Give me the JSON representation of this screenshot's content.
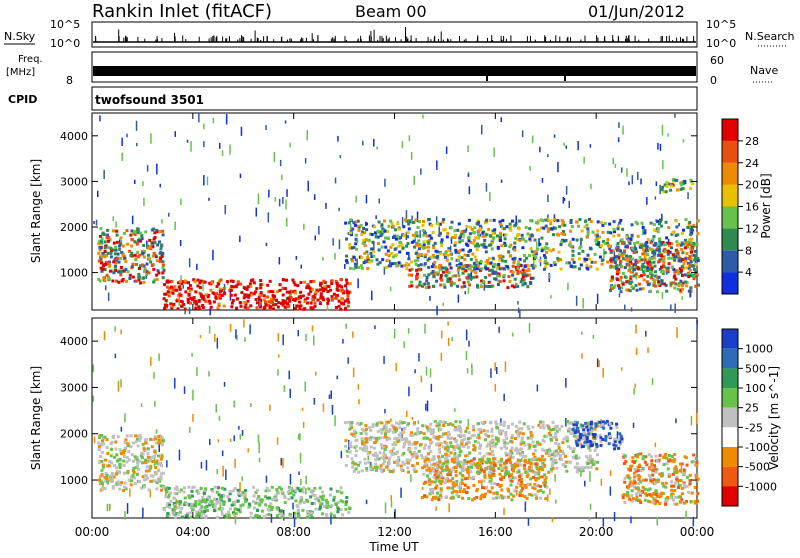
{
  "header": {
    "title": "Rankin Inlet (fitACF)",
    "beam": "Beam 00",
    "date": "01/Jun/2012"
  },
  "top_panels": {
    "nsky_label": "N.Sky",
    "nsky_ticks": [
      "10^5",
      "10^0"
    ],
    "nsearch_label": "N.Search",
    "freq_label_line1": "Freq.",
    "freq_label_line2": "[MHz]",
    "freq_tick": "8",
    "nave_label": "Nave",
    "nave_ticks": [
      "60",
      "0"
    ],
    "cpid_label": "CPID",
    "cpid_value": "twofsound 3501"
  },
  "chart_data": [
    {
      "type": "heatmap",
      "parameter": "Power",
      "xlabel": "",
      "ylabel": "Slant Range [km]",
      "x_ticks": [
        "00:00",
        "04:00",
        "08:00",
        "12:00",
        "16:00",
        "20:00",
        "00:00"
      ],
      "y_ticks": [
        1000,
        2000,
        3000,
        4000
      ],
      "ylim": [
        180,
        4500
      ],
      "xlim_hours": [
        0,
        24
      ],
      "colorbar": {
        "label": "Power [dB]",
        "ticks": [
          "4",
          "8",
          "12",
          "16",
          "20",
          "24",
          "28"
        ],
        "colors": [
          "#1030e0",
          "#2e5aa8",
          "#2e8a50",
          "#66c24a",
          "#e8c000",
          "#ee8a00",
          "#e85010",
          "#e00000"
        ]
      },
      "regions": [
        {
          "hours": [
            2.8,
            10.2
          ],
          "km": [
            220,
            880
          ],
          "level": "high"
        },
        {
          "hours": [
            0.2,
            2.8
          ],
          "km": [
            800,
            2000
          ],
          "level": "mid-high"
        },
        {
          "hours": [
            12.5,
            17.5
          ],
          "km": [
            700,
            1200
          ],
          "level": "mid-high"
        },
        {
          "hours": [
            10,
            24
          ],
          "km": [
            1100,
            2200
          ],
          "level": "mid"
        },
        {
          "hours": [
            20.5,
            24
          ],
          "km": [
            600,
            1700
          ],
          "level": "mid-high"
        },
        {
          "hours": [
            22.5,
            23.8
          ],
          "km": [
            2800,
            3100
          ],
          "level": "mid"
        }
      ]
    },
    {
      "type": "heatmap",
      "parameter": "Velocity",
      "xlabel": "Time UT",
      "ylabel": "Slant Range [km]",
      "x_ticks": [
        "00:00",
        "04:00",
        "08:00",
        "12:00",
        "16:00",
        "20:00",
        "00:00"
      ],
      "y_ticks": [
        1000,
        2000,
        3000,
        4000
      ],
      "ylim": [
        180,
        4500
      ],
      "xlim_hours": [
        0,
        24
      ],
      "colorbar": {
        "label": "Velocity [m s^-1]",
        "ticks": [
          "1000",
          "500",
          "100",
          "25",
          "-25",
          "-100",
          "-500",
          "-1000"
        ],
        "colors": [
          "#1a3fc8",
          "#2f6cb8",
          "#2f9a55",
          "#66c24a",
          "#c0c0c0",
          "#ffffff",
          "#f08a00",
          "#f05a10",
          "#e00000"
        ]
      },
      "regions": [
        {
          "hours": [
            2.8,
            10.2
          ],
          "km": [
            220,
            880
          ],
          "level": "green-grey"
        },
        {
          "hours": [
            0.2,
            2.8
          ],
          "km": [
            800,
            2000
          ],
          "level": "grey"
        },
        {
          "hours": [
            10,
            20
          ],
          "km": [
            1200,
            2300
          ],
          "level": "grey"
        },
        {
          "hours": [
            13,
            18
          ],
          "km": [
            600,
            1500
          ],
          "level": "orange"
        },
        {
          "hours": [
            19,
            21
          ],
          "km": [
            1700,
            2300
          ],
          "level": "blue"
        },
        {
          "hours": [
            21,
            24
          ],
          "km": [
            500,
            1600
          ],
          "level": "orange"
        }
      ]
    }
  ]
}
